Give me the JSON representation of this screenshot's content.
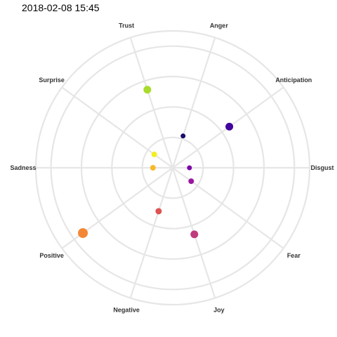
{
  "chart_data": {
    "type": "scatter",
    "coordinate_system": "polar",
    "title": "2018-02-08 15:45",
    "categories": [
      "Anger",
      "Anticipation",
      "Disgust",
      "Fear",
      "Joy",
      "Negative",
      "Positive",
      "Sadness",
      "Surprise",
      "Trust"
    ],
    "r_range": [
      0,
      4.5
    ],
    "grid": true,
    "legend": "none",
    "points": [
      {
        "category": "Anger",
        "r": 1.1,
        "size": 3.5,
        "color": "#1c0c6b"
      },
      {
        "category": "Anticipation",
        "r": 2.3,
        "size": 5.5,
        "color": "#42049e"
      },
      {
        "category": "Disgust",
        "r": 0.55,
        "size": 3.5,
        "color": "#7c07a8"
      },
      {
        "category": "Fear",
        "r": 0.75,
        "size": 4.0,
        "color": "#99179f"
      },
      {
        "category": "Joy",
        "r": 2.3,
        "size": 5.5,
        "color": "#bf3a7c"
      },
      {
        "category": "Negative",
        "r": 1.5,
        "size": 4.5,
        "color": "#de5353"
      },
      {
        "category": "Positive",
        "r": 3.65,
        "size": 7.0,
        "color": "#f48735"
      },
      {
        "category": "Sadness",
        "r": 0.65,
        "size": 4.0,
        "color": "#f8ba2b"
      },
      {
        "category": "Surprise",
        "r": 0.75,
        "size": 4.0,
        "color": "#f2ee25"
      },
      {
        "category": "Trust",
        "r": 2.7,
        "size": 5.5,
        "color": "#a8db2c"
      }
    ]
  }
}
